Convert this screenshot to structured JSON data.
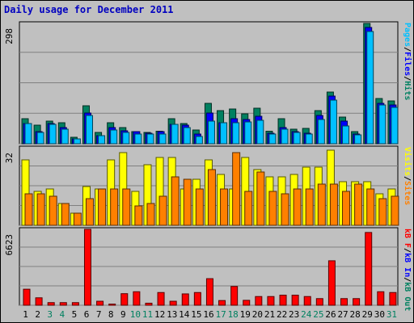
{
  "title": "Daily usage for December 2011",
  "colors": {
    "hits": "#008060",
    "files": "#0000ff",
    "pages": "#00c0ff",
    "visits": "#ffff00",
    "sites": "#ff8000",
    "kbout": "#ff8000",
    "kbin": "#008060",
    "kbf": "#ff0000"
  },
  "chart_data": [
    {
      "type": "bar",
      "categories": [
        "1",
        "2",
        "3",
        "4",
        "5",
        "6",
        "7",
        "8",
        "9",
        "10",
        "11",
        "12",
        "13",
        "14",
        "15",
        "16",
        "17",
        "18",
        "19",
        "20",
        "21",
        "22",
        "23",
        "24",
        "25",
        "26",
        "27",
        "28",
        "29",
        "30",
        "31"
      ],
      "weekend_categories": [
        "3",
        "4",
        "10",
        "11",
        "17",
        "18",
        "24",
        "25",
        "31"
      ],
      "ylim": [
        0,
        298
      ],
      "y_tick_label": "298",
      "legend": [
        {
          "parts": [
            "Pages",
            "/",
            "Files",
            "/",
            "Hits"
          ],
          "colors": [
            "pages",
            "sep",
            "files",
            "sep",
            "hits"
          ]
        }
      ],
      "series": [
        {
          "name": "Hits",
          "color": "hits",
          "values": [
            62,
            46,
            56,
            52,
            16,
            94,
            28,
            52,
            40,
            30,
            28,
            31,
            62,
            50,
            34,
            100,
            82,
            86,
            74,
            88,
            31,
            62,
            36,
            38,
            82,
            128,
            66,
            30,
            298,
            112,
            106
          ]
        },
        {
          "name": "Files",
          "color": "files",
          "values": [
            50,
            30,
            50,
            40,
            12,
            76,
            20,
            40,
            32,
            30,
            26,
            30,
            48,
            46,
            24,
            76,
            52,
            62,
            60,
            68,
            26,
            40,
            30,
            26,
            70,
            118,
            56,
            24,
            288,
            100,
            96
          ]
        },
        {
          "name": "Pages",
          "color": "pages",
          "values": [
            50,
            28,
            48,
            36,
            12,
            70,
            20,
            34,
            28,
            24,
            24,
            24,
            48,
            40,
            18,
            56,
            52,
            52,
            54,
            58,
            24,
            36,
            28,
            24,
            60,
            108,
            44,
            22,
            278,
            96,
            90
          ]
        }
      ]
    },
    {
      "type": "bar",
      "categories": [
        "1",
        "2",
        "3",
        "4",
        "5",
        "6",
        "7",
        "8",
        "9",
        "10",
        "11",
        "12",
        "13",
        "14",
        "15",
        "16",
        "17",
        "18",
        "19",
        "20",
        "21",
        "22",
        "23",
        "24",
        "25",
        "26",
        "27",
        "28",
        "29",
        "30",
        "31"
      ],
      "ylim": [
        0,
        32
      ],
      "y_tick_label": "32",
      "legend": [
        {
          "parts": [
            "Visits",
            "/",
            "Sites"
          ],
          "colors": [
            "visits",
            "sep",
            "sites"
          ]
        }
      ],
      "series": [
        {
          "name": "Visits",
          "color": "visits",
          "values": [
            27,
            14,
            15,
            9,
            5,
            16,
            15,
            27,
            30,
            14,
            25,
            28,
            28,
            15,
            19,
            27,
            21,
            15,
            28,
            23,
            20,
            20,
            21,
            24,
            24,
            31,
            18,
            18,
            18,
            13,
            15
          ]
        },
        {
          "name": "Sites",
          "color": "sites",
          "values": [
            13,
            13,
            12,
            9,
            5,
            11,
            15,
            15,
            15,
            8,
            9,
            12,
            20,
            19,
            15,
            23,
            15,
            30,
            14,
            22,
            14,
            13,
            15,
            15,
            17,
            17,
            14,
            17,
            15,
            11,
            12
          ]
        }
      ]
    },
    {
      "type": "bar",
      "categories": [
        "1",
        "2",
        "3",
        "4",
        "5",
        "6",
        "7",
        "8",
        "9",
        "10",
        "11",
        "12",
        "13",
        "14",
        "15",
        "16",
        "17",
        "18",
        "19",
        "20",
        "21",
        "22",
        "23",
        "24",
        "25",
        "26",
        "27",
        "28",
        "29",
        "30",
        "31"
      ],
      "ylim": [
        0,
        6623
      ],
      "y_tick_label": "6623",
      "legend": [
        {
          "parts": [
            "kB F",
            "/",
            "kB In",
            "/",
            "kB Out"
          ],
          "colors": [
            "kbf",
            "sep",
            "files",
            "sep",
            "kbin"
          ]
        }
      ],
      "series": [
        {
          "name": "kB F",
          "color": "kbf",
          "values": [
            1400,
            650,
            230,
            230,
            230,
            6623,
            350,
            100,
            1010,
            1180,
            180,
            1110,
            350,
            990,
            1110,
            2320,
            410,
            1640,
            430,
            760,
            760,
            880,
            880,
            760,
            580,
            3880,
            580,
            580,
            6350,
            1180,
            1110
          ]
        }
      ]
    }
  ]
}
